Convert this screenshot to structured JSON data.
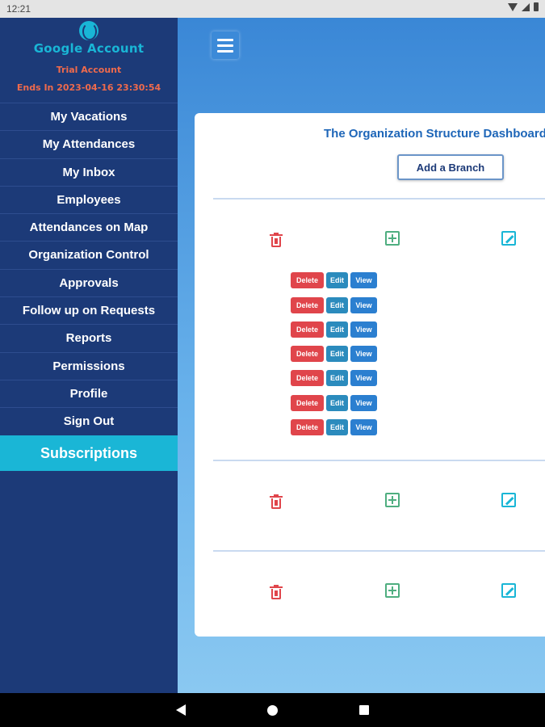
{
  "status_bar": {
    "time": "12:21"
  },
  "account": {
    "title": "Google Account",
    "plan": "Trial Account",
    "expiry": "Ends In 2023-04-16 23:30:54"
  },
  "sidebar": {
    "items": [
      {
        "label": "My Vacations"
      },
      {
        "label": "My Attendances"
      },
      {
        "label": "My Inbox"
      },
      {
        "label": "Employees"
      },
      {
        "label": "Attendances on Map"
      },
      {
        "label": "Organization Control"
      },
      {
        "label": "Approvals"
      },
      {
        "label": "Follow up on Requests"
      },
      {
        "label": "Reports"
      },
      {
        "label": "Permissions"
      },
      {
        "label": "Profile"
      },
      {
        "label": "Sign Out"
      }
    ],
    "subscriptions": "Subscriptions"
  },
  "dashboard": {
    "title": "The Organization Structure Dashboard",
    "add_branch": "Add a Branch",
    "row_buttons": {
      "delete": "Delete",
      "edit": "Edit",
      "view": "View"
    }
  },
  "colors": {
    "sidebar": "#1c3a78",
    "accent": "#1ab6d6",
    "danger": "#e0454b",
    "expiry": "#ef6a4c"
  }
}
